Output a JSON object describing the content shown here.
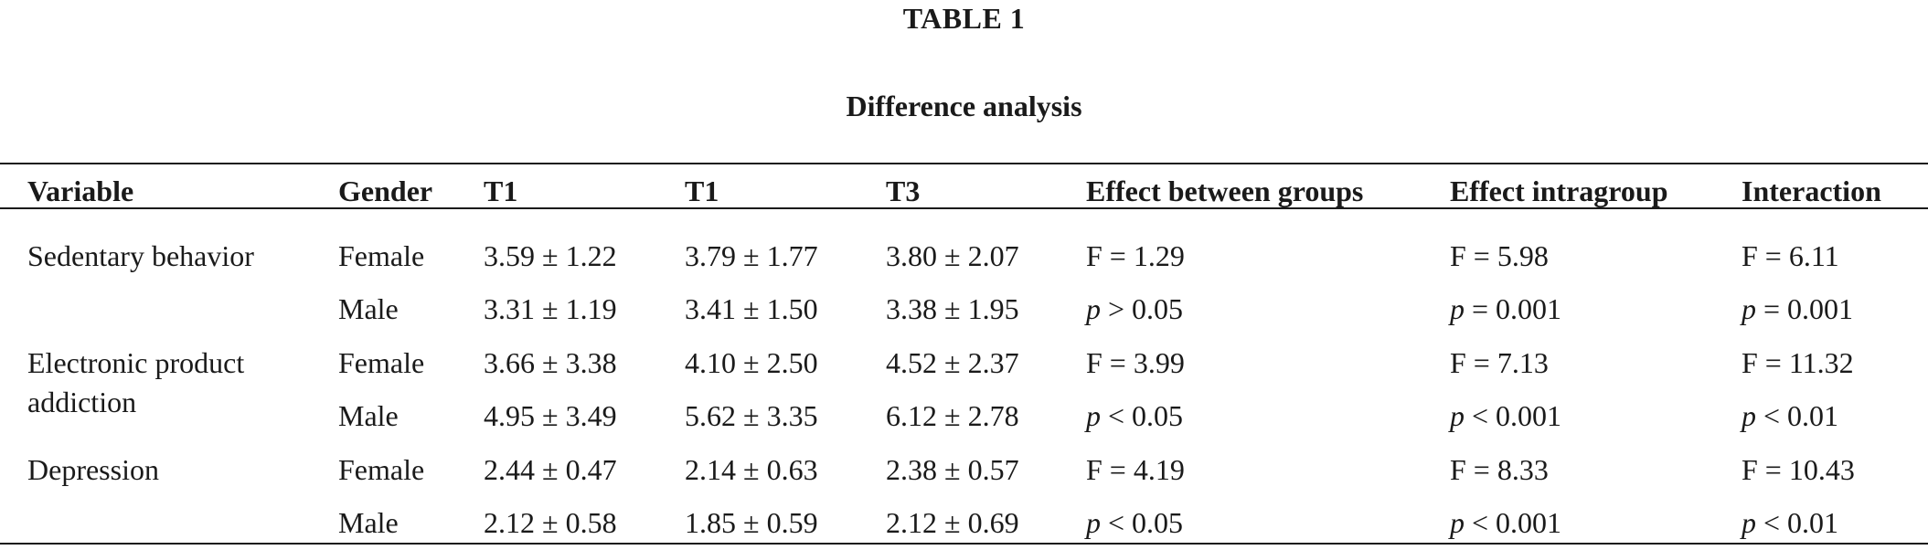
{
  "table": {
    "label": "TABLE 1",
    "title": "Difference analysis",
    "headers": [
      "Variable",
      "Gender",
      "T1",
      "T1",
      "T3",
      "Effect between groups",
      "Effect intragroup",
      "Interaction"
    ],
    "groups": [
      {
        "variable_lines": [
          "Sedentary behavior"
        ],
        "rows": [
          {
            "gender": "Female",
            "t1": "3.59 ± 1.22",
            "t2": "3.79 ± 1.77",
            "t3": "3.80 ± 2.07",
            "between": "F = 1.29",
            "intra": "F = 5.98",
            "interaction": "F = 6.11"
          },
          {
            "gender": "Male",
            "t1": "3.31 ± 1.19",
            "t2": "3.41 ± 1.50",
            "t3": "3.38 ± 1.95",
            "between": "> 0.05",
            "intra": "= 0.001",
            "interaction": "= 0.001"
          }
        ]
      },
      {
        "variable_lines": [
          "Electronic product",
          "addiction"
        ],
        "rows": [
          {
            "gender": "Female",
            "t1": "3.66 ± 3.38",
            "t2": "4.10 ± 2.50",
            "t3": "4.52 ± 2.37",
            "between": "F = 3.99",
            "intra": "F = 7.13",
            "interaction": "F = 11.32"
          },
          {
            "gender": "Male",
            "t1": "4.95 ± 3.49",
            "t2": "5.62 ± 3.35",
            "t3": "6.12 ± 2.78",
            "between": "< 0.05",
            "intra": "< 0.001",
            "interaction": "< 0.01"
          }
        ]
      },
      {
        "variable_lines": [
          "Depression"
        ],
        "rows": [
          {
            "gender": "Female",
            "t1": "2.44 ± 0.47",
            "t2": "2.14 ± 0.63",
            "t3": "2.38 ± 0.57",
            "between": "F = 4.19",
            "intra": "F = 8.33",
            "interaction": "F = 10.43"
          },
          {
            "gender": "Male",
            "t1": "2.12 ± 0.58",
            "t2": "1.85 ± 0.59",
            "t3": "2.12 ± 0.69",
            "between": "< 0.05",
            "intra": "< 0.001",
            "interaction": "< 0.01"
          }
        ]
      }
    ],
    "p_symbol": "p"
  }
}
